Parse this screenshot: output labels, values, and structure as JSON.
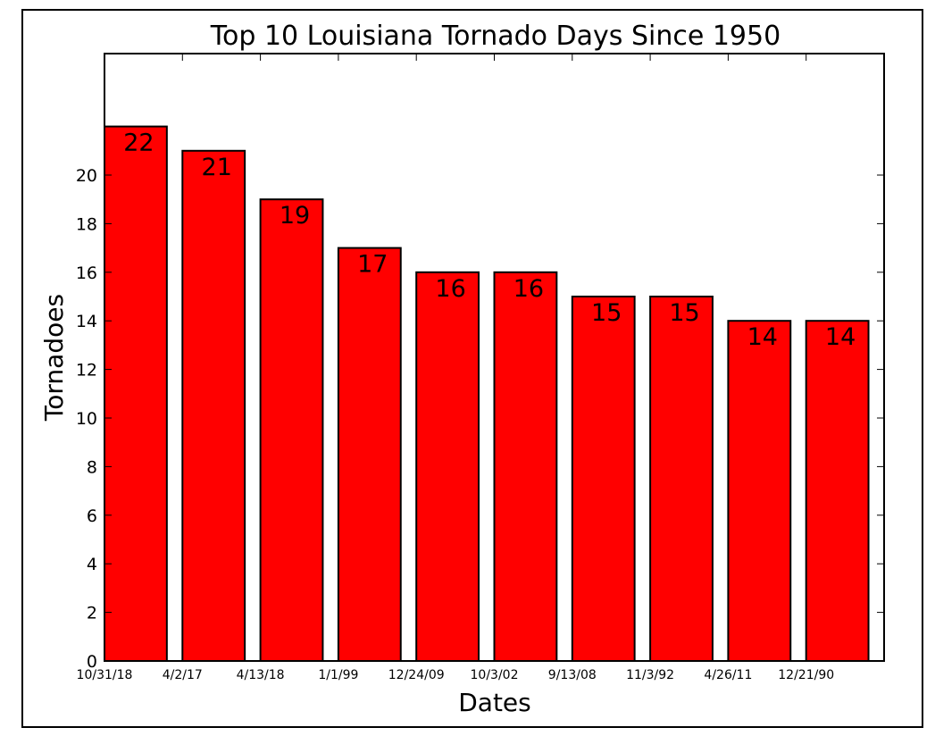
{
  "chart_data": {
    "type": "bar",
    "title": "Top 10 Louisiana Tornado Days Since 1950",
    "xlabel": "Dates",
    "ylabel": "Tornadoes",
    "categories": [
      "10/31/18",
      "4/2/17",
      "4/13/18",
      "1/1/99",
      "12/24/09",
      "10/3/02",
      "9/13/08",
      "11/3/92",
      "4/26/11",
      "12/21/90"
    ],
    "values": [
      22,
      21,
      19,
      17,
      16,
      16,
      15,
      15,
      14,
      14
    ],
    "data_labels": [
      "22",
      "21",
      "19",
      "17",
      "16",
      "16",
      "15",
      "15",
      "14",
      "14"
    ],
    "ylim": [
      0,
      25
    ],
    "yticks": [
      "0",
      "2",
      "4",
      "6",
      "8",
      "10",
      "12",
      "14",
      "16",
      "18",
      "20"
    ],
    "grid": false,
    "legend": "none",
    "bar_color": "#ff0000",
    "edge_color": "#000000"
  }
}
